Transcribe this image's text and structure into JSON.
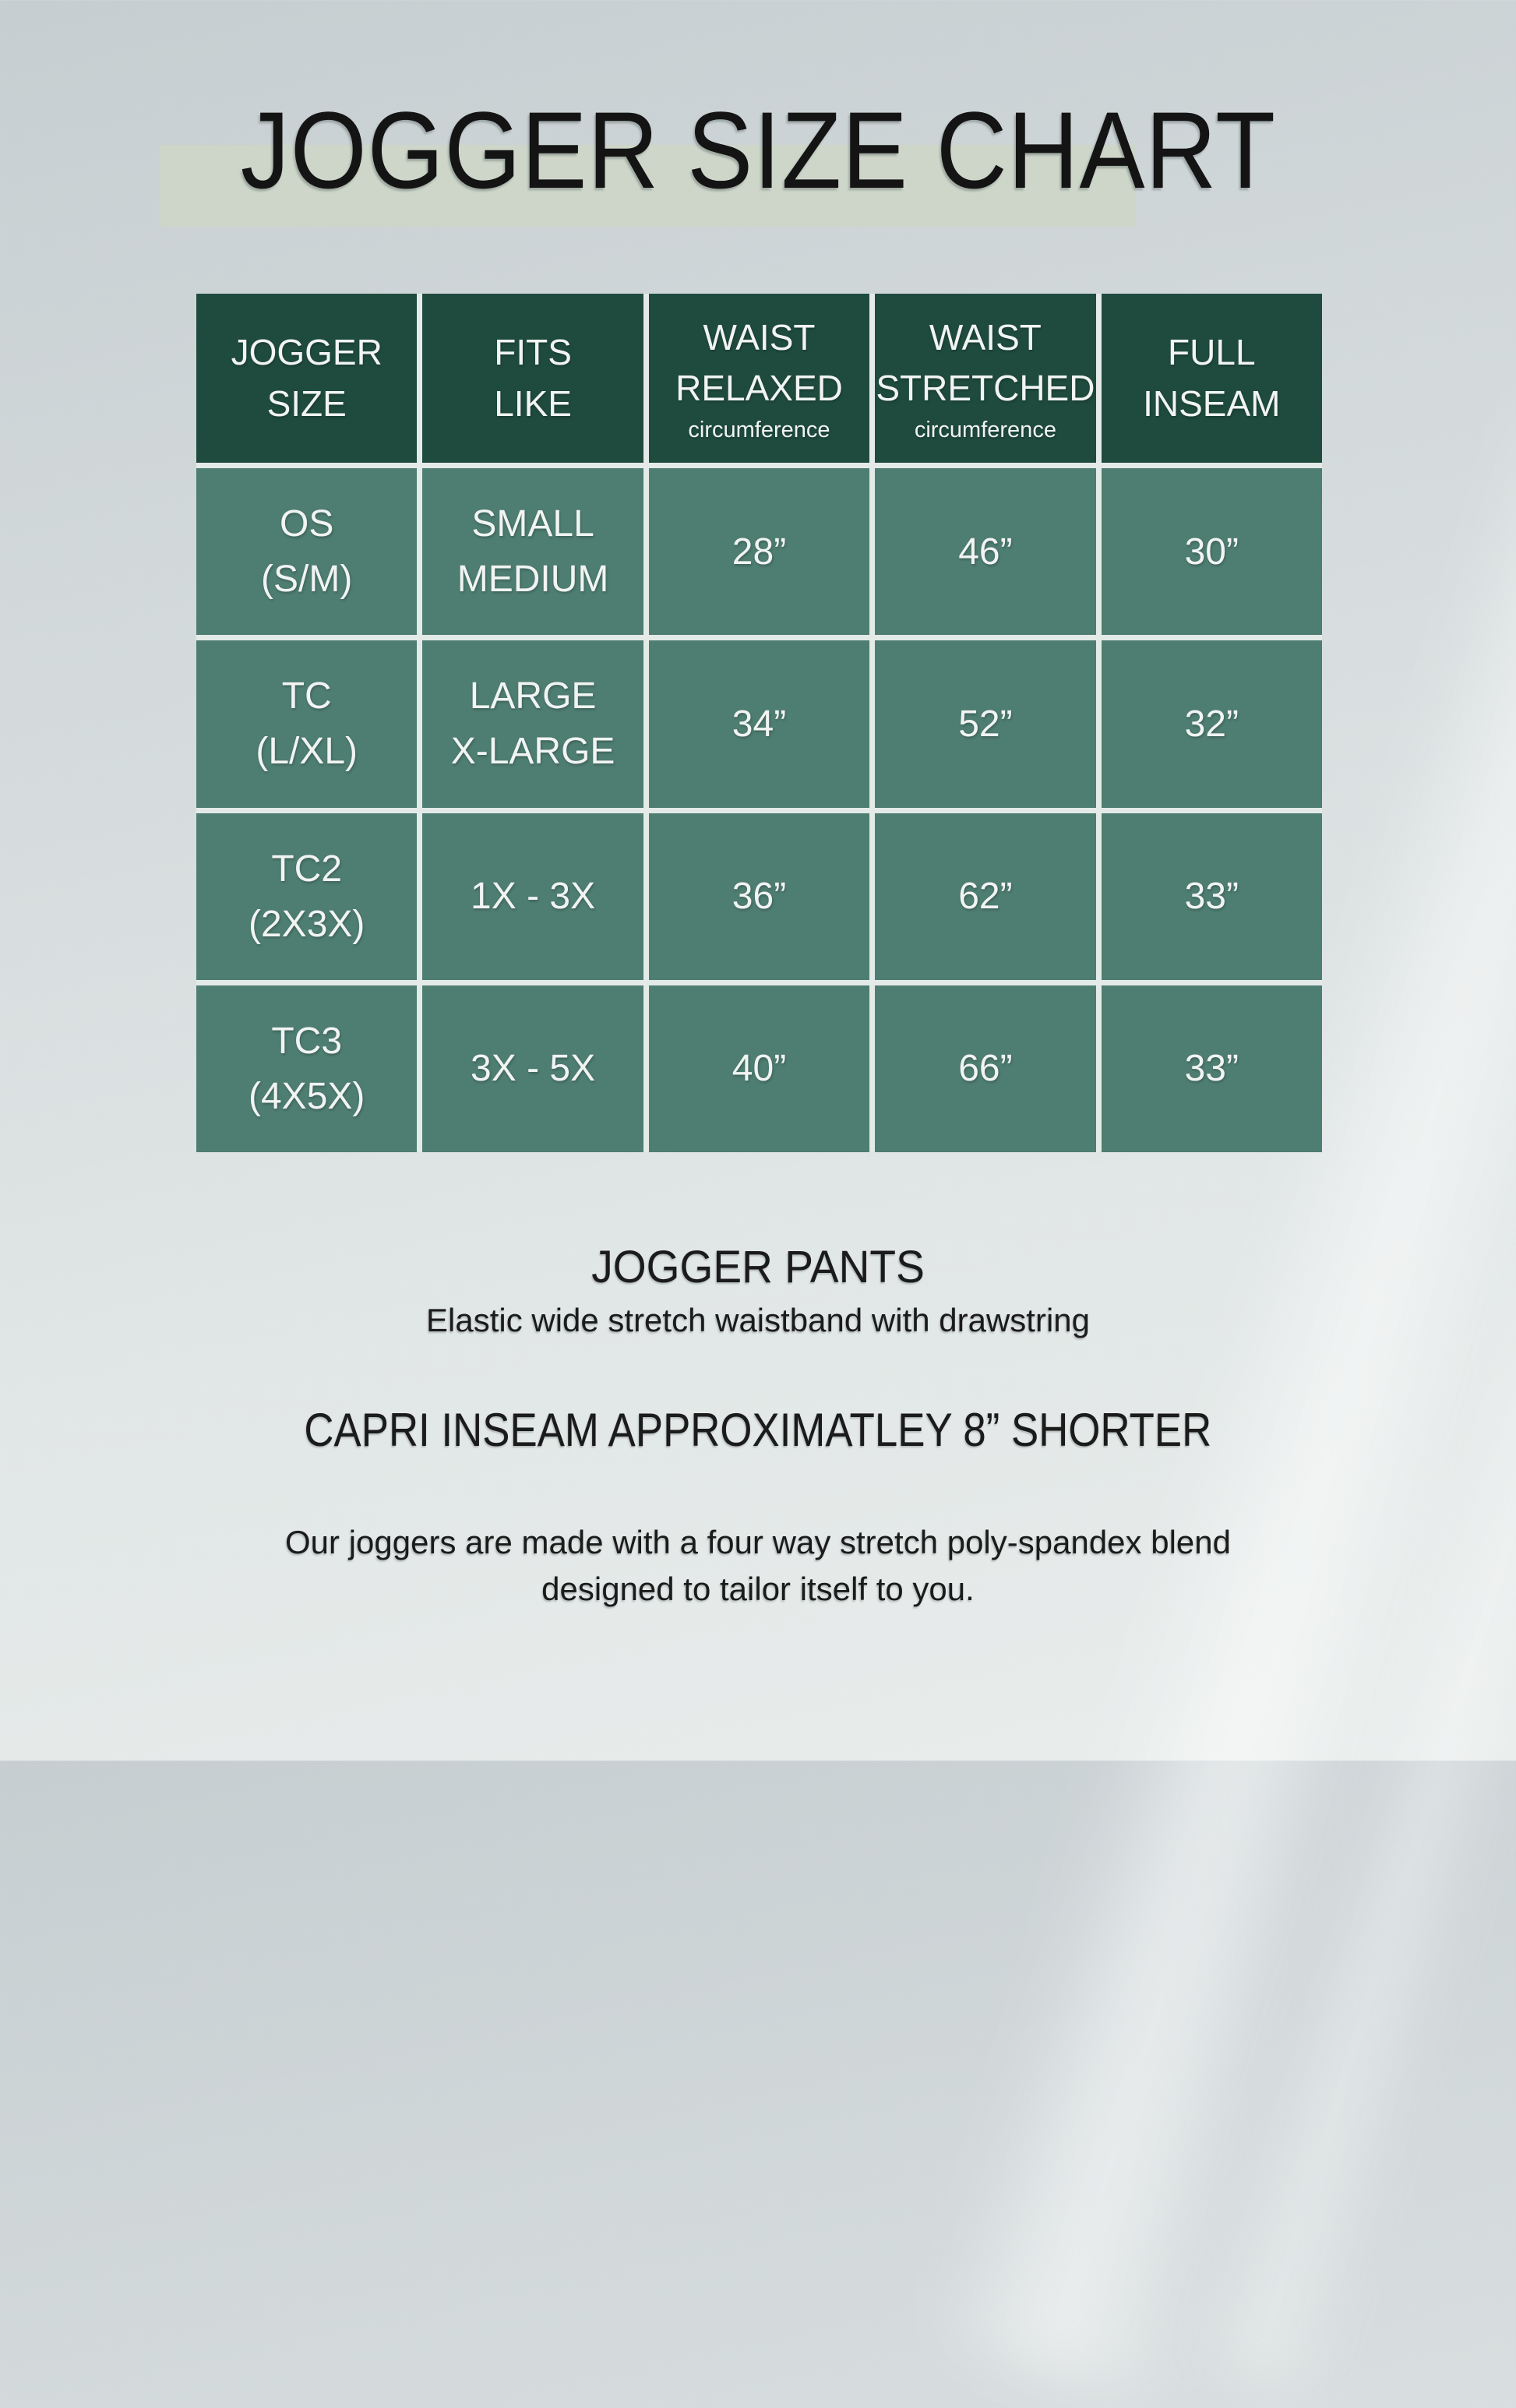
{
  "page": {
    "title": "JOGGER SIZE CHART"
  },
  "chart_data": {
    "type": "table",
    "title": "JOGGER SIZE CHART",
    "columns": [
      {
        "label": "JOGGER SIZE",
        "lines": [
          "JOGGER",
          "SIZE"
        ]
      },
      {
        "label": "FITS LIKE",
        "lines": [
          "FITS",
          "LIKE"
        ]
      },
      {
        "label": "WAIST RELAXED circumference",
        "lines": [
          "WAIST",
          "RELAXED"
        ],
        "note": "circumference"
      },
      {
        "label": "WAIST STRETCHED circumference",
        "lines": [
          "WAIST",
          "STRETCHED"
        ],
        "note": "circumference"
      },
      {
        "label": "FULL INSEAM",
        "lines": [
          "FULL",
          "INSEAM"
        ]
      }
    ],
    "rows": [
      {
        "cells": [
          [
            "OS",
            "(S/M)"
          ],
          [
            "SMALL",
            "MEDIUM"
          ],
          [
            "28”"
          ],
          [
            "46”"
          ],
          [
            "30”"
          ]
        ]
      },
      {
        "cells": [
          [
            "TC",
            "(L/XL)"
          ],
          [
            "LARGE",
            "X-LARGE"
          ],
          [
            "34”"
          ],
          [
            "52”"
          ],
          [
            "32”"
          ]
        ]
      },
      {
        "cells": [
          [
            "TC2",
            "(2X3X)"
          ],
          [
            "1X - 3X"
          ],
          [
            "36”"
          ],
          [
            "62”"
          ],
          [
            "33”"
          ]
        ]
      },
      {
        "cells": [
          [
            "TC3",
            "(4X5X)"
          ],
          [
            "3X - 5X"
          ],
          [
            "40”"
          ],
          [
            "66”"
          ],
          [
            "33”"
          ]
        ]
      }
    ]
  },
  "footer": {
    "heading": "JOGGER PANTS",
    "subheading": "Elastic wide stretch waistband with drawstring",
    "capri_note": "CAPRI INSEAM APPROXIMATLEY 8” SHORTER",
    "description_line1": "Our joggers are made with a four way stretch poly-spandex blend",
    "description_line2": "designed to tailor itself to you."
  },
  "colors": {
    "header_green": "#1f4b3e",
    "body_green": "#4e7d71",
    "grid_line": "#e4eae7",
    "title_band": "#cdd6c8",
    "text_light": "#f1f4f2",
    "text_dark": "#1b1b1b",
    "background_top": "#c6ced1",
    "background_bottom": "#e9edec"
  }
}
